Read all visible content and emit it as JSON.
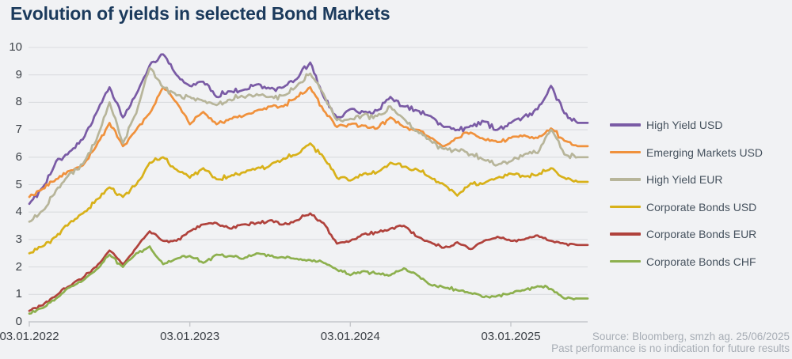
{
  "title": "Evolution of yields in selected Bond Markets",
  "footer": {
    "source": "Source: Bloomberg, smzh ag. 25/06/2025",
    "disclaimer": "Past performance is no indication for future results"
  },
  "colors": {
    "background": "#F1F2F4",
    "title": "#1B3A5C",
    "grid": "#DADCDF",
    "axis": "#C5C7CB",
    "axis_text": "#3C4147",
    "legend_text": "#46525E",
    "source_text": "#A7ADB5"
  },
  "chart_data": {
    "type": "line",
    "title": "Evolution of yields in selected Bond Markets",
    "xlabel": "",
    "ylabel": "",
    "ylim": [
      0,
      10
    ],
    "yticks": [
      0,
      1,
      2,
      3,
      4,
      5,
      6,
      7,
      8,
      9,
      10
    ],
    "grid": true,
    "legend_position": "right",
    "x_tick_labels": [
      "03.01.2022",
      "03.01.2023",
      "03.01.2024",
      "03.01.2025"
    ],
    "x_start": "2022-01",
    "x_end": "2025-06",
    "x_note": "monthly estimates of daily yield data, percent",
    "series": [
      {
        "name": "High Yield USD",
        "color": "#7A5BA5",
        "values": [
          4.3,
          4.9,
          5.85,
          6.2,
          6.65,
          7.6,
          8.55,
          7.45,
          8.3,
          9.35,
          9.75,
          9.0,
          8.6,
          8.75,
          8.2,
          8.4,
          8.45,
          8.65,
          8.5,
          8.55,
          8.85,
          9.45,
          8.2,
          7.45,
          7.75,
          7.65,
          7.7,
          8.2,
          7.85,
          7.7,
          7.5,
          7.1,
          7.0,
          7.15,
          7.3,
          7.0,
          7.25,
          7.5,
          7.75,
          8.6,
          7.6,
          7.25
        ]
      },
      {
        "name": "Emerging Markets USD",
        "color": "#F0913C",
        "values": [
          4.55,
          4.85,
          5.2,
          5.5,
          5.7,
          6.4,
          7.25,
          6.4,
          7.0,
          7.6,
          8.55,
          8.0,
          7.2,
          7.65,
          7.2,
          7.4,
          7.5,
          7.7,
          7.85,
          7.85,
          8.2,
          8.55,
          7.7,
          7.1,
          7.2,
          7.15,
          7.05,
          7.45,
          7.1,
          7.0,
          6.7,
          6.4,
          6.7,
          6.9,
          6.65,
          6.55,
          6.7,
          6.8,
          6.7,
          7.05,
          6.6,
          6.4
        ]
      },
      {
        "name": "High Yield EUR",
        "color": "#B7B59A",
        "values": [
          3.65,
          4.05,
          4.8,
          5.4,
          5.75,
          6.6,
          8.0,
          6.5,
          7.6,
          9.25,
          8.55,
          8.25,
          8.2,
          8.05,
          7.9,
          8.1,
          8.2,
          8.3,
          8.2,
          8.25,
          8.6,
          9.05,
          8.3,
          7.35,
          7.4,
          7.55,
          7.5,
          7.85,
          7.4,
          6.95,
          6.6,
          6.3,
          6.25,
          6.1,
          5.9,
          5.72,
          5.85,
          6.1,
          6.15,
          7.0,
          6.1,
          6.0
        ]
      },
      {
        "name": "Corporate Bonds USD",
        "color": "#D8B119",
        "values": [
          2.5,
          2.75,
          3.1,
          3.6,
          3.95,
          4.45,
          4.9,
          4.55,
          5.0,
          5.8,
          6.0,
          5.55,
          5.25,
          5.6,
          5.2,
          5.3,
          5.45,
          5.6,
          5.7,
          5.95,
          6.1,
          6.5,
          6.0,
          5.25,
          5.15,
          5.4,
          5.45,
          5.8,
          5.65,
          5.55,
          5.25,
          5.0,
          4.6,
          5.05,
          5.05,
          5.25,
          5.4,
          5.3,
          5.35,
          5.6,
          5.25,
          5.1
        ]
      },
      {
        "name": "Corporate Bonds EUR",
        "color": "#B0423C",
        "values": [
          0.4,
          0.6,
          0.95,
          1.3,
          1.6,
          2.0,
          2.6,
          2.1,
          2.7,
          3.3,
          2.95,
          2.95,
          3.3,
          3.55,
          3.6,
          3.4,
          3.55,
          3.6,
          3.7,
          3.55,
          3.7,
          3.95,
          3.6,
          2.85,
          2.95,
          3.2,
          3.25,
          3.4,
          3.5,
          3.1,
          2.9,
          2.7,
          2.9,
          2.65,
          2.95,
          3.1,
          2.95,
          3.0,
          3.15,
          2.95,
          2.85,
          2.8
        ]
      },
      {
        "name": "Corporate Bonds CHF",
        "color": "#8DB04E",
        "values": [
          0.3,
          0.5,
          0.85,
          1.25,
          1.5,
          1.9,
          2.45,
          2.0,
          2.5,
          2.75,
          2.1,
          2.3,
          2.4,
          2.15,
          2.45,
          2.4,
          2.3,
          2.5,
          2.4,
          2.35,
          2.3,
          2.25,
          2.15,
          1.9,
          1.7,
          1.85,
          1.75,
          1.7,
          1.95,
          1.7,
          1.35,
          1.25,
          1.15,
          1.05,
          0.9,
          0.95,
          1.05,
          1.15,
          1.3,
          1.2,
          0.85,
          0.85
        ]
      }
    ]
  }
}
